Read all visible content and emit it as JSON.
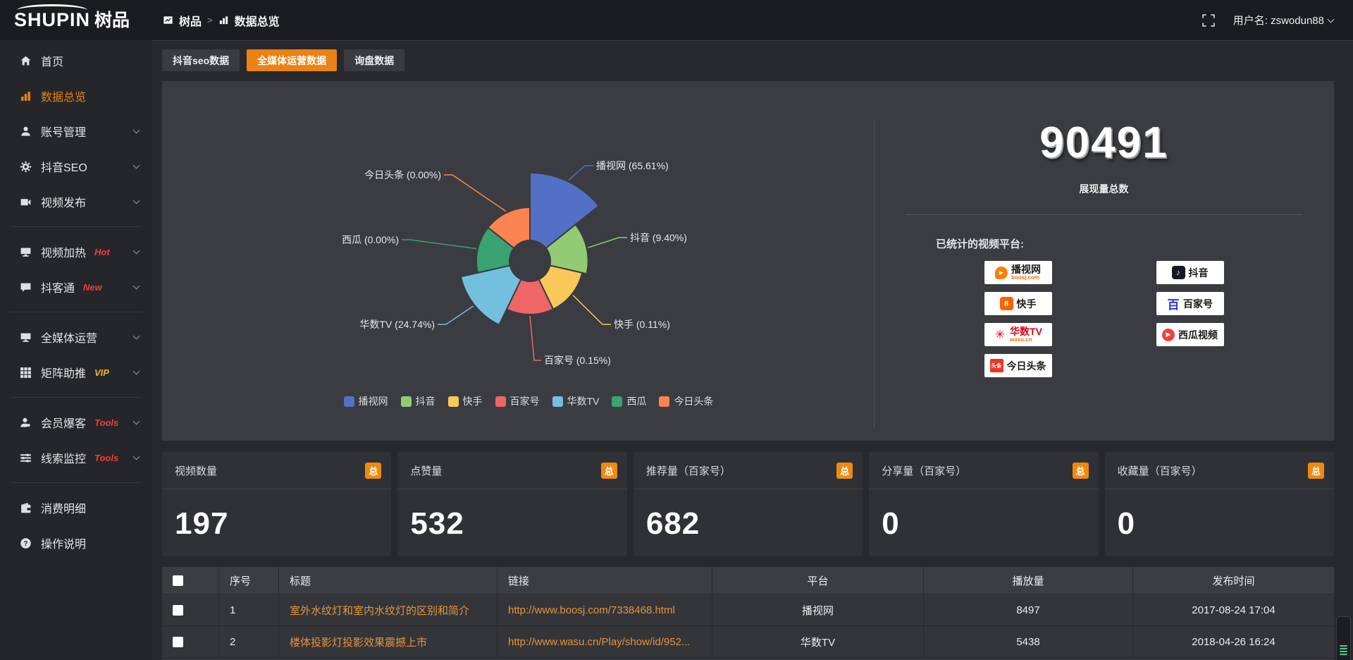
{
  "header": {
    "logo_primary": "SHUPIN",
    "logo_secondary": "树品",
    "breadcrumb": [
      {
        "label": "树品"
      },
      {
        "label": "数据总览"
      }
    ],
    "username": "用户名: zswodun88"
  },
  "sidebar": {
    "items": [
      {
        "label": "首页",
        "icon": "home-icon"
      },
      {
        "label": "数据总览",
        "icon": "bar-chart-icon",
        "active": true
      },
      {
        "label": "账号管理",
        "icon": "user-icon",
        "chevron": true
      },
      {
        "label": "抖音SEO",
        "icon": "gear-icon",
        "chevron": true
      },
      {
        "label": "视频发布",
        "icon": "video-camera-icon",
        "chevron": true
      },
      {
        "divider": true
      },
      {
        "label": "视频加热",
        "icon": "screen-icon",
        "badge": "Hot",
        "badge_color": "#f23c3c",
        "chevron": true
      },
      {
        "label": "抖客通",
        "icon": "chat-icon",
        "badge": "New",
        "badge_color": "#f23c3c",
        "chevron": true
      },
      {
        "divider": true
      },
      {
        "label": "全媒体运营",
        "icon": "monitor-icon",
        "chevron": true
      },
      {
        "label": "矩阵助推",
        "icon": "grid-icon",
        "badge": "VIP",
        "badge_color": "#f0b429",
        "chevron": true
      },
      {
        "divider": true
      },
      {
        "label": "会员爆客",
        "icon": "member-icon",
        "badge": "Tools",
        "badge_color": "#f23c3c",
        "chevron": true
      },
      {
        "label": "线索监控",
        "icon": "sliders-icon",
        "badge": "Tools",
        "badge_color": "#f23c3c",
        "chevron": true
      },
      {
        "divider": true
      },
      {
        "label": "消费明细",
        "icon": "wallet-icon"
      },
      {
        "label": "操作说明",
        "icon": "question-icon"
      }
    ]
  },
  "tabs": [
    {
      "label": "抖音seo数据"
    },
    {
      "label": "全媒体运营数据",
      "active": true
    },
    {
      "label": "询盘数据"
    }
  ],
  "chart_data": {
    "type": "pie",
    "variant": "nightingale-rose-donut",
    "series": [
      {
        "name": "播视网",
        "value_pct": 65.61
      },
      {
        "name": "抖音",
        "value_pct": 9.4
      },
      {
        "name": "快手",
        "value_pct": 0.11
      },
      {
        "name": "百家号",
        "value_pct": 0.15
      },
      {
        "name": "华数TV",
        "value_pct": 24.74
      },
      {
        "name": "西瓜",
        "value_pct": 0.0
      },
      {
        "name": "今日头条",
        "value_pct": 0.0
      }
    ],
    "colors": [
      "#5470c6",
      "#91cc75",
      "#fac858",
      "#ee6666",
      "#73c0de",
      "#3ba272",
      "#fc8452"
    ],
    "legend": [
      "播视网",
      "抖音",
      "快手",
      "百家号",
      "华数TV",
      "西瓜",
      "今日头条"
    ],
    "legend_position": "bottom",
    "label_format": "{name} ({pct}%)",
    "total": 90491
  },
  "summary": {
    "total": "90491",
    "total_label": "展现量总数",
    "platforms_title": "已统计的视频平台:",
    "platforms": [
      {
        "name": "播视网",
        "sub": "boosj.com",
        "icon": "boosj-logo",
        "column": 0
      },
      {
        "name": "快手",
        "icon": "kuaishou-logo",
        "column": 0
      },
      {
        "name": "华数TV",
        "sub": "wasu.cn",
        "icon": "wasu-logo",
        "column": 0,
        "name_color": "#e60012"
      },
      {
        "name": "今日头条",
        "icon": "toutiao-logo",
        "column": 0
      },
      {
        "name": "抖音",
        "icon": "douyin-logo",
        "column": 1
      },
      {
        "name": "百家号",
        "icon": "baijiahao-logo",
        "column": 1
      },
      {
        "name": "西瓜视频",
        "icon": "xigua-logo",
        "column": 1
      }
    ],
    "platform_icons": {
      "boosj-logo": {
        "glyph": "▶",
        "bg": "#ff7e00",
        "fg": "#ffffff",
        "shape": "drop"
      },
      "kuaishou-logo": {
        "glyph": "8",
        "bg": "#ff6000",
        "fg": "#ffffff",
        "shape": "rounded"
      },
      "wasu-logo": {
        "glyph": "✳",
        "bg": "",
        "fg": "#e60012",
        "shape": "plain"
      },
      "toutiao-logo": {
        "glyph": "头条",
        "bg": "#ed3321",
        "fg": "#ffffff",
        "shape": "square"
      },
      "douyin-logo": {
        "glyph": "♪",
        "bg": "#161823",
        "fg": "#ffffff",
        "shape": "rounded"
      },
      "baijiahao-logo": {
        "glyph": "百",
        "bg": "",
        "fg": "#2932e1",
        "shape": "plain"
      },
      "xigua-logo": {
        "glyph": "▶",
        "bg": "#f04142",
        "fg": "#ffffff",
        "shape": "circle"
      }
    }
  },
  "stat_cards": [
    {
      "label": "视频数量",
      "badge": "总",
      "value": "197"
    },
    {
      "label": "点赞量",
      "badge": "总",
      "value": "532"
    },
    {
      "label": "推荐量（百家号）",
      "badge": "总",
      "value": "682"
    },
    {
      "label": "分享量（百家号）",
      "badge": "总",
      "value": "0"
    },
    {
      "label": "收藏量（百家号）",
      "badge": "总",
      "value": "0"
    }
  ],
  "table": {
    "headers": [
      "序号",
      "标题",
      "链接",
      "平台",
      "播放量",
      "发布时间"
    ],
    "rows": [
      {
        "seq": "1",
        "title": "室外水纹灯和室内水纹灯的区别和简介",
        "link": "http://www.boosj.com/7338468.html",
        "platform": "播视网",
        "plays": "8497",
        "time": "2017-08-24 17:04"
      },
      {
        "seq": "2",
        "title": "楼体投影灯投影效果震撼上市",
        "link": "http://www.wasu.cn/Play/show/id/952...",
        "platform": "华数TV",
        "plays": "5438",
        "time": "2018-04-26 16:24"
      }
    ]
  }
}
